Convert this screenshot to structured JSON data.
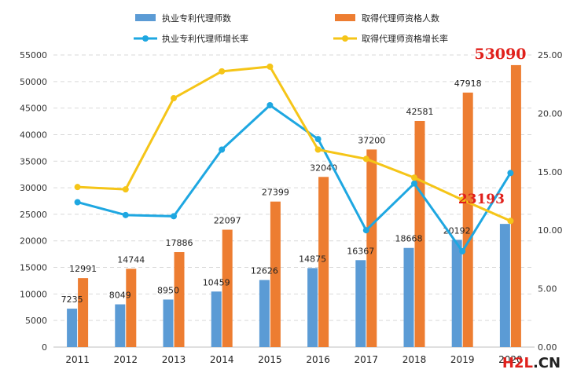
{
  "chart_data": {
    "type": "bar",
    "categories": [
      "2011",
      "2012",
      "2013",
      "2014",
      "2015",
      "2016",
      "2017",
      "2018",
      "2019",
      "2020"
    ],
    "series": [
      {
        "name": "执业专利代理师数",
        "kind": "bar",
        "axis": "left",
        "color": "#5b9bd5",
        "values": [
          7235,
          8049,
          8950,
          10459,
          12626,
          14875,
          16367,
          18668,
          20192,
          23193
        ]
      },
      {
        "name": "取得代理师资格人数",
        "kind": "bar",
        "axis": "left",
        "color": "#ed7d31",
        "values": [
          12991,
          14744,
          17886,
          22097,
          27399,
          32040,
          37200,
          42581,
          47918,
          53090
        ]
      },
      {
        "name": "执业专利代理师增长率",
        "kind": "line",
        "axis": "right",
        "color": "#1ea7e1",
        "values": [
          12.4,
          11.3,
          11.2,
          16.9,
          20.7,
          17.8,
          10.0,
          14.0,
          8.2,
          14.9
        ]
      },
      {
        "name": "取得代理师资格增长率",
        "kind": "line",
        "axis": "right",
        "color": "#f5c518",
        "values": [
          13.7,
          13.5,
          21.3,
          23.6,
          24.0,
          16.9,
          16.1,
          14.5,
          12.6,
          10.8
        ]
      }
    ],
    "left_axis": {
      "ylim": [
        0,
        55000
      ],
      "ticks": [
        "0",
        "5000",
        "10000",
        "15000",
        "20000",
        "25000",
        "30000",
        "35000",
        "40000",
        "45000",
        "50000",
        "55000"
      ]
    },
    "right_axis": {
      "ylim": [
        0,
        25
      ],
      "ticks": [
        "0.00",
        "5.00",
        "10.00",
        "15.00",
        "20.00",
        "25.00"
      ]
    },
    "highlights": [
      {
        "text": "53090",
        "series": 1,
        "index": 9
      },
      {
        "text": "23193",
        "series": 0,
        "index": 9
      }
    ],
    "grid": "dashed horizontal",
    "legend_position": "top"
  },
  "watermark": {
    "left": "H2L",
    "right": ".CN",
    "left_color": "#e0201b",
    "right_color": "#222222"
  }
}
